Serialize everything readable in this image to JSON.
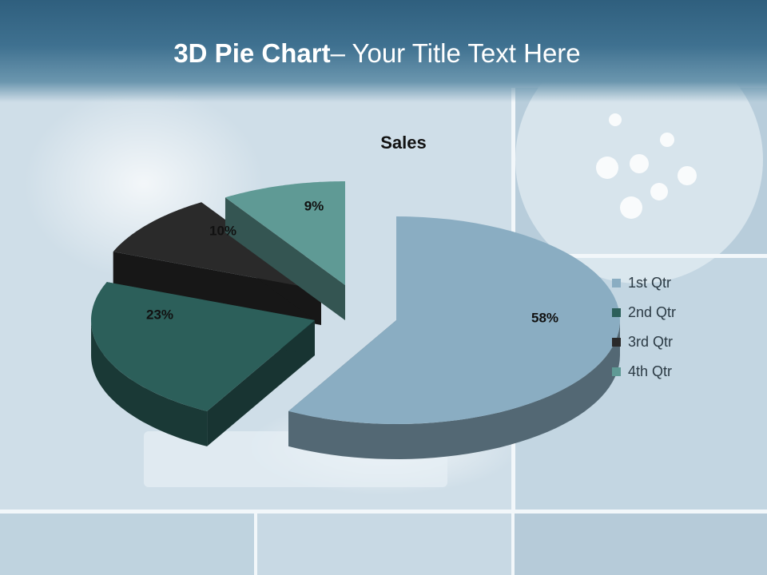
{
  "slide": {
    "title_bold": "3D Pie Chart",
    "title_rest": "– Your Title Text Here"
  },
  "chart_data": {
    "type": "pie",
    "title": "Sales",
    "categories": [
      "1st Qtr",
      "2nd Qtr",
      "3rd Qtr",
      "4th Qtr"
    ],
    "values": [
      58,
      23,
      10,
      9
    ],
    "data_labels": [
      "58%",
      "23%",
      "10%",
      "9%"
    ],
    "colors": [
      "#8aadc2",
      "#2c5f5a",
      "#2a2a2a",
      "#5f9a95"
    ],
    "legend_position": "right",
    "style": "3D exploded pie"
  }
}
